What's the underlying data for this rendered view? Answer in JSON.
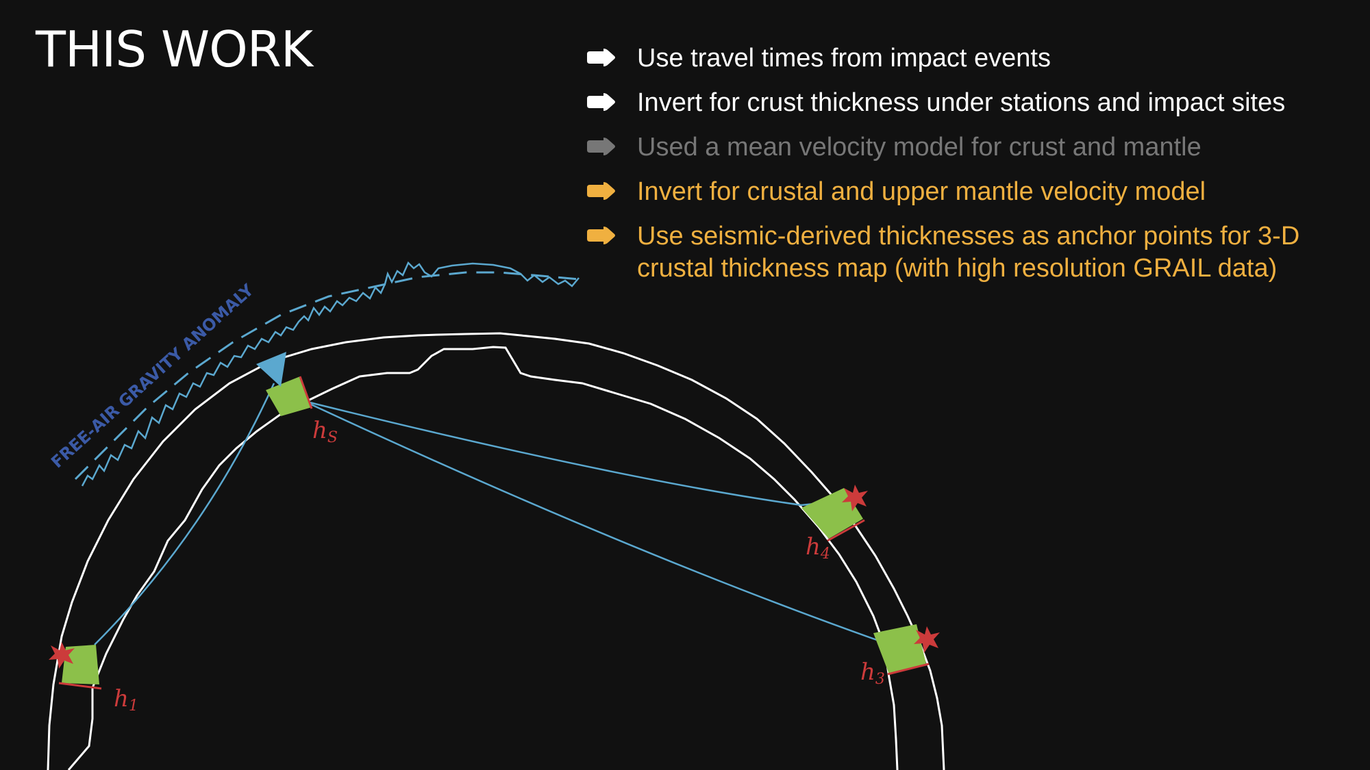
{
  "title": "THIS WORK",
  "colors": {
    "background": "#111111",
    "white": "#ffffff",
    "gray": "#777777",
    "accent": "#f0b040",
    "ray": "#5ba8cf",
    "gravity_label": "#3b5aa6",
    "impact": "#cc3b3b",
    "crust_patch": "#8cc04a"
  },
  "bullets": [
    {
      "text": "Use travel times from impact events",
      "color": "#ffffff",
      "icon": "arrow-right-icon"
    },
    {
      "text": "Invert for crust thickness under stations and impact sites",
      "color": "#ffffff",
      "icon": "arrow-right-icon"
    },
    {
      "text": "Used a mean velocity model for crust and mantle",
      "color": "#777777",
      "icon": "arrow-right-icon"
    },
    {
      "text": "Invert for crustal and upper mantle velocity model",
      "color": "#f0b040",
      "icon": "arrow-right-icon"
    },
    {
      "text": "Use seismic-derived thicknesses as anchor points for 3-D crustal thickness map (with high resolution GRAIL data)",
      "color": "#f0b040",
      "icon": "arrow-right-icon"
    }
  ],
  "diagram": {
    "gravity_label": "FREE-AIR GRAVITY ANOMALY",
    "labels": {
      "hs": {
        "base": "h",
        "sub": "S"
      },
      "h1": {
        "base": "h",
        "sub": "1"
      },
      "h3": {
        "base": "h",
        "sub": "3"
      },
      "h4": {
        "base": "h",
        "sub": "4"
      }
    },
    "station_icon": "station-triangle-icon",
    "impact_icon": "impact-star-icon"
  }
}
